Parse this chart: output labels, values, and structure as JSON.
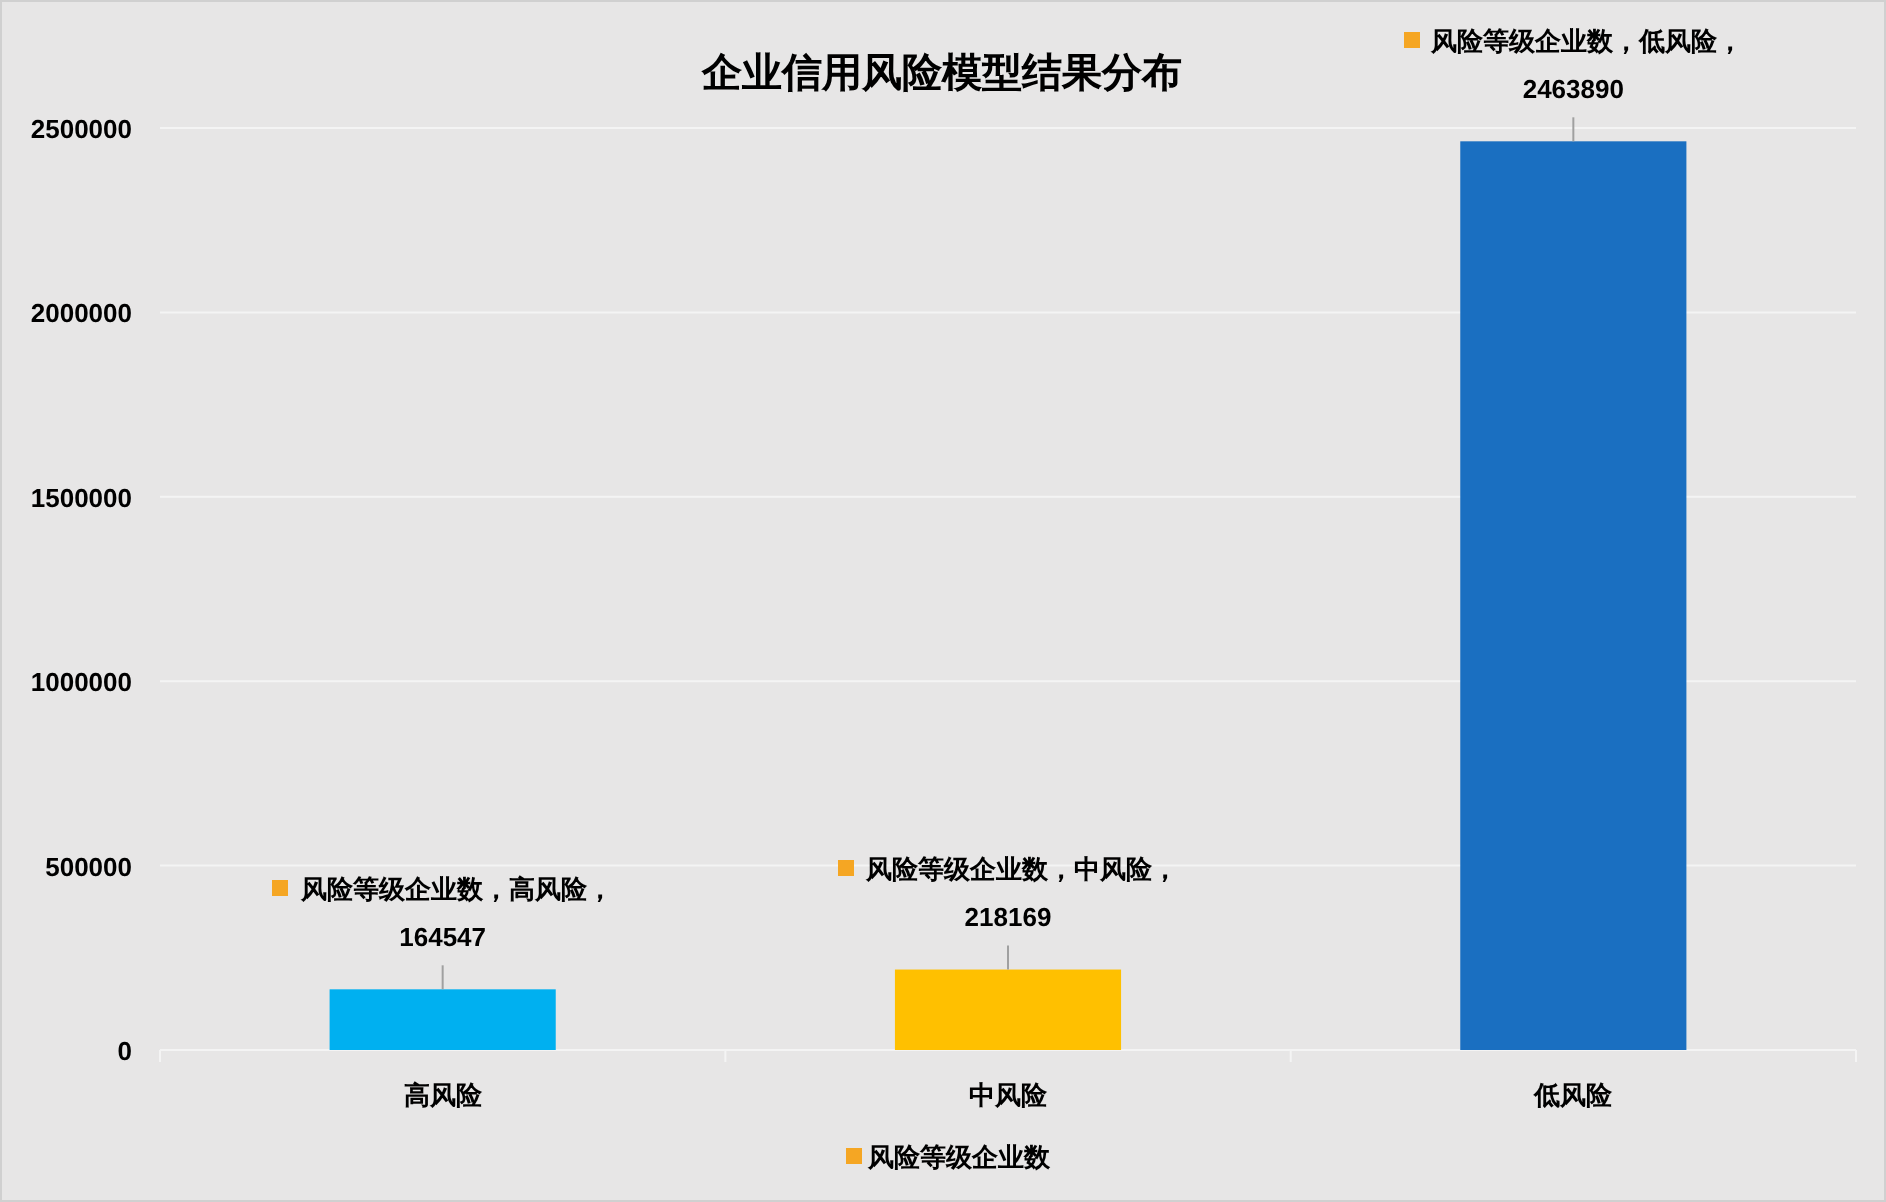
{
  "chart_data": {
    "type": "bar",
    "title": "企业信用风险模型结果分布",
    "categories": [
      "高风险",
      "中风险",
      "低风险"
    ],
    "series": [
      {
        "name": "风险等级企业数",
        "color": "#f5a623",
        "colors": [
          "#00b0f0",
          "#ffc000",
          "#1a6fc1"
        ],
        "values": [
          164547,
          218169,
          2463890
        ],
        "value_labels": [
          "风险等级企业数，高风险，164547",
          "风险等级企业数，中风险，218169",
          "风险等级企业数，低风险，2463890"
        ]
      }
    ],
    "ylim": [
      0,
      2500000
    ],
    "yticks": [
      0,
      500000,
      1000000,
      1500000,
      2000000,
      2500000
    ],
    "grid": "y",
    "legend": "bottom"
  }
}
